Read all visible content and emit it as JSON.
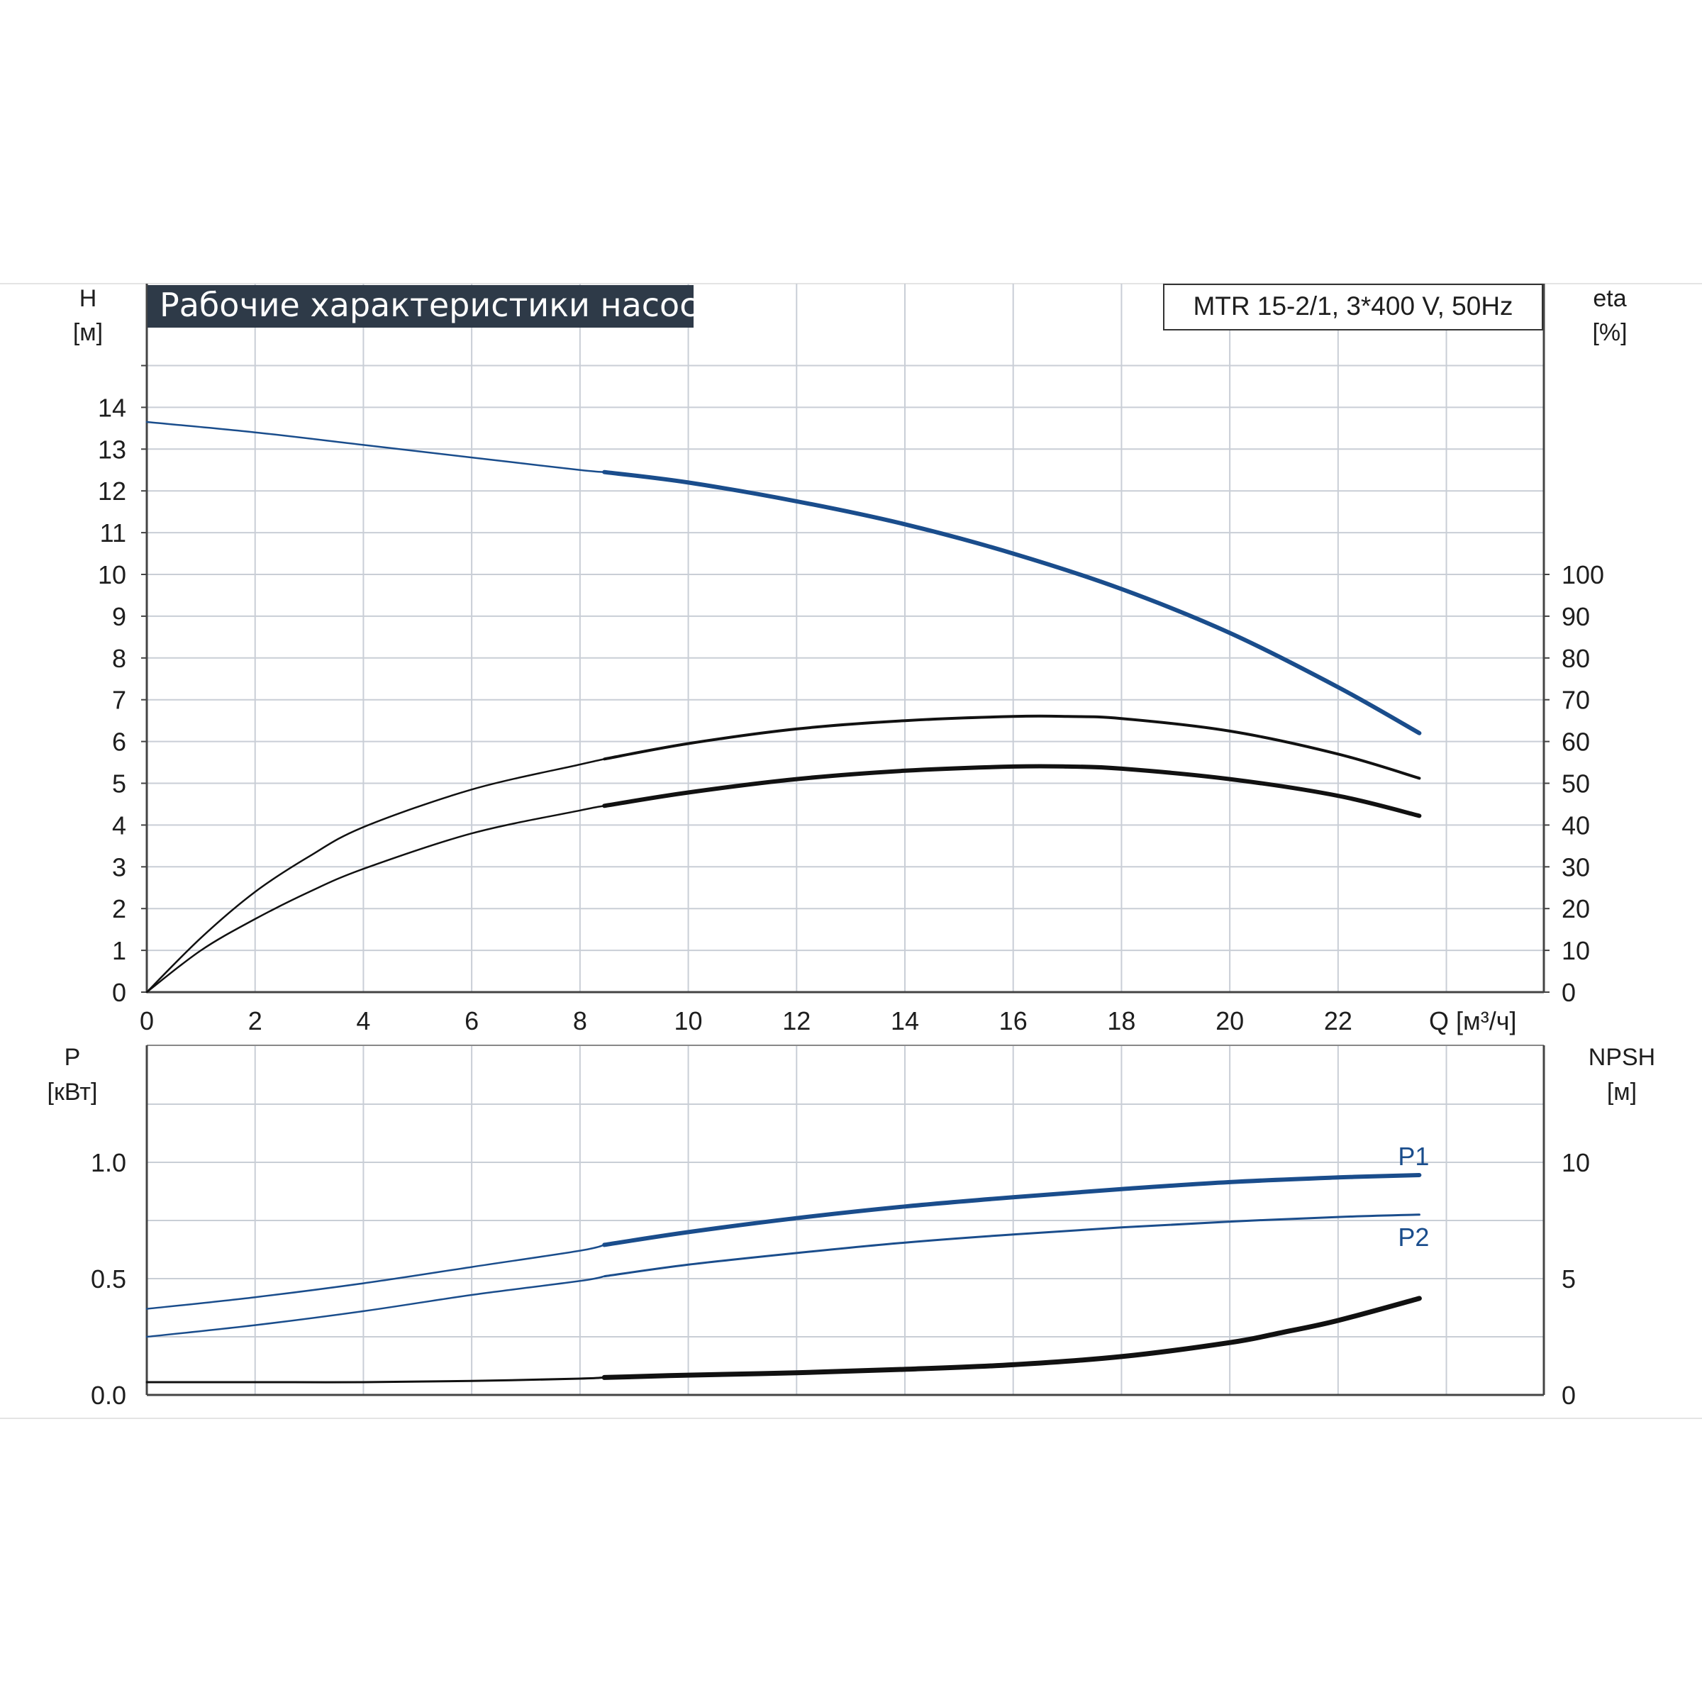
{
  "chart_data": [
    {
      "type": "line",
      "title": "Рабочие характеристики насоса",
      "subtitle": "MTR 15-2/1, 3*400 V, 50Hz",
      "xlabel": "Q [м³/ч]",
      "ylabel_left_name": "H",
      "ylabel_left_unit": "[м]",
      "ylabel_right_name": "eta",
      "ylabel_right_unit": "[%]",
      "xlim": [
        0,
        25.8
      ],
      "ylim_left": [
        0,
        16
      ],
      "ylim_right": [
        0,
        160
      ],
      "xticks": [
        "0",
        "2",
        "4",
        "6",
        "8",
        "10",
        "12",
        "14",
        "16",
        "18",
        "20",
        "22"
      ],
      "yticks_left": [
        "0",
        "1",
        "2",
        "3",
        "4",
        "5",
        "6",
        "7",
        "8",
        "9",
        "10",
        "11",
        "12",
        "13",
        "14"
      ],
      "yticks_right": [
        "0",
        "10",
        "20",
        "30",
        "40",
        "50",
        "60",
        "70",
        "80",
        "90",
        "100"
      ],
      "grid": true,
      "series": [
        {
          "key": "H",
          "axis": "left",
          "color": "#1a4d8c",
          "x": [
            0,
            2,
            4,
            6,
            8,
            8.45,
            10,
            12,
            14,
            16,
            18,
            20,
            22,
            23.5
          ],
          "y": [
            13.65,
            13.4,
            13.1,
            12.8,
            12.5,
            12.45,
            12.2,
            11.75,
            11.2,
            10.5,
            9.65,
            8.6,
            7.3,
            6.2
          ]
        },
        {
          "key": "eta_pump",
          "axis": "right",
          "color": "#111111",
          "x": [
            0,
            1,
            2,
            3,
            4,
            6,
            8,
            8.45,
            10,
            12,
            14,
            16,
            17,
            18,
            20,
            22,
            23.5
          ],
          "y": [
            0,
            13,
            24,
            32.5,
            39.5,
            48.5,
            54.5,
            55.8,
            59.5,
            63,
            65,
            66,
            66,
            65.5,
            62.5,
            57,
            51.2
          ]
        },
        {
          "key": "eta_total",
          "axis": "right",
          "color": "#111111",
          "x": [
            0,
            1,
            2,
            3,
            4,
            6,
            8,
            8.45,
            10,
            12,
            14,
            16,
            17,
            18,
            20,
            22,
            23.5
          ],
          "y": [
            0,
            10,
            17.5,
            24,
            29.5,
            38,
            43.5,
            44.6,
            47.8,
            51,
            53,
            54,
            54,
            53.5,
            51,
            47,
            42.2
          ]
        }
      ]
    },
    {
      "type": "line",
      "xlim": [
        0,
        25.8
      ],
      "ylabel_left_name": "P",
      "ylabel_left_unit": "[кВт]",
      "ylabel_right_name": "NPSH",
      "ylabel_right_unit": "[м]",
      "ylim_left": [
        0,
        1.5
      ],
      "ylim_right": [
        0,
        15
      ],
      "yticks_left": [
        "0.0",
        "0.5",
        "1.0"
      ],
      "yticks_right": [
        "0",
        "5",
        "10"
      ],
      "grid": true,
      "series": [
        {
          "key": "P1",
          "name": "P1",
          "axis": "left",
          "color": "#1a4d8c",
          "x": [
            0,
            2,
            4,
            6,
            8,
            8.45,
            10,
            12,
            14,
            16,
            18,
            20,
            22,
            23.5
          ],
          "y": [
            0.37,
            0.42,
            0.48,
            0.55,
            0.62,
            0.645,
            0.7,
            0.76,
            0.81,
            0.85,
            0.885,
            0.915,
            0.935,
            0.945
          ]
        },
        {
          "key": "P2",
          "name": "P2",
          "axis": "left",
          "color": "#1a4d8c",
          "x": [
            0,
            2,
            4,
            6,
            8,
            8.45,
            10,
            12,
            14,
            16,
            18,
            20,
            22,
            23.5
          ],
          "y": [
            0.25,
            0.3,
            0.36,
            0.43,
            0.49,
            0.51,
            0.56,
            0.61,
            0.655,
            0.69,
            0.72,
            0.745,
            0.765,
            0.775
          ]
        },
        {
          "key": "NPSH",
          "axis": "right",
          "color": "#111111",
          "x": [
            0,
            2,
            4,
            6,
            8,
            8.45,
            10,
            12,
            14,
            16,
            18,
            20,
            21,
            22,
            23.5
          ],
          "y": [
            0.55,
            0.55,
            0.55,
            0.6,
            0.7,
            0.75,
            0.85,
            0.95,
            1.1,
            1.3,
            1.65,
            2.25,
            2.7,
            3.2,
            4.15
          ]
        }
      ]
    }
  ]
}
